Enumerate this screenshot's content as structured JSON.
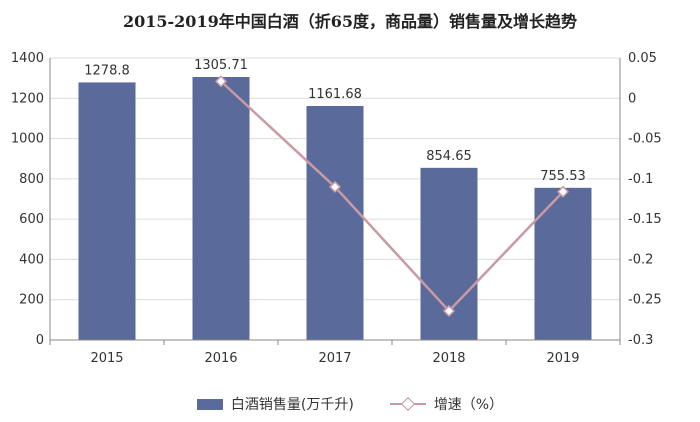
{
  "title": "2015-2019年中国白酒（折65度，商品量）销售量及增长趋势",
  "legend": {
    "bar_label": "白酒销售量(万千升)",
    "line_label": "增速（%）"
  },
  "colors": {
    "bar": "#5a6a9a",
    "line": "#c89aa4",
    "grid": "#dcdcdc",
    "axis": "#888888"
  },
  "chart_data": {
    "type": "bar",
    "title": "2015-2019年中国白酒（折65度，商品量）销售量及增长趋势",
    "categories": [
      "2015",
      "2016",
      "2017",
      "2018",
      "2019"
    ],
    "series": [
      {
        "name": "白酒销售量(万千升)",
        "type": "bar",
        "axis": "left",
        "values": [
          1278.8,
          1305.71,
          1161.68,
          854.65,
          755.53
        ],
        "data_labels": [
          "1278.8",
          "1305.71",
          "1161.68",
          "854.65",
          "755.53"
        ]
      },
      {
        "name": "增速（%）",
        "type": "line",
        "axis": "right",
        "values": [
          null,
          0.021,
          -0.11,
          -0.264,
          -0.116
        ]
      }
    ],
    "y_left": {
      "min": 0,
      "max": 1400,
      "ticks": [
        0,
        200,
        400,
        600,
        800,
        1000,
        1200,
        1400
      ],
      "tick_labels": [
        "0",
        "200",
        "400",
        "600",
        "800",
        "1000",
        "1200",
        "1400"
      ]
    },
    "y_right": {
      "min": -0.3,
      "max": 0.05,
      "ticks": [
        0.05,
        0,
        -0.05,
        -0.1,
        -0.15,
        -0.2,
        -0.25,
        -0.3
      ],
      "tick_labels": [
        "0.05",
        "0",
        "-0.05",
        "-0.1",
        "-0.15",
        "-0.2",
        "-0.25",
        "-0.3"
      ]
    },
    "grid": true,
    "legend_position": "bottom"
  }
}
